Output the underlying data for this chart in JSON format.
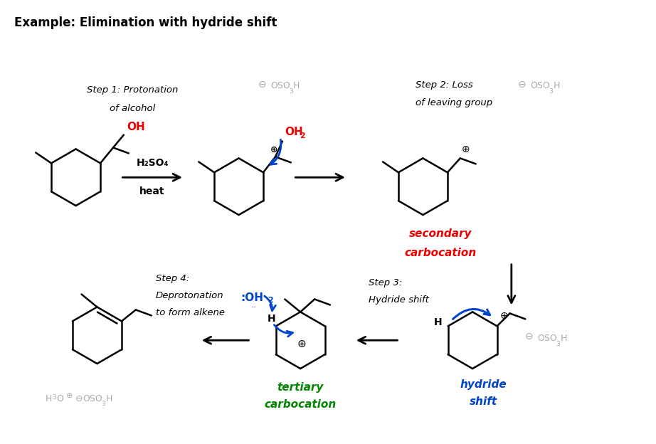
{
  "title": "Example: Elimination with hydride shift",
  "title_fontsize": 13,
  "bg_color": "#ffffff",
  "black": "#000000",
  "gray": "#aaaaaa",
  "red": "#ee0000",
  "blue": "#0044cc",
  "green": "#008800",
  "step1_label": "Step 1: Protonation\nof alcohol",
  "step2_label": "Step 2: Loss\nof leaving group",
  "step3_label": "Step 3:\nHydride shift",
  "step4_label": "Step 4:\nDeprotonation\nto form alkene",
  "reagent_label": "H₂SO₄",
  "reagent2_label": "heat",
  "sec_carb": "secondary\ncarbocation",
  "tert_carb": "tertiary\ncarbocation",
  "hydride_shift": "hydride\nshift",
  "plus": "⊕",
  "minus": "⊖"
}
